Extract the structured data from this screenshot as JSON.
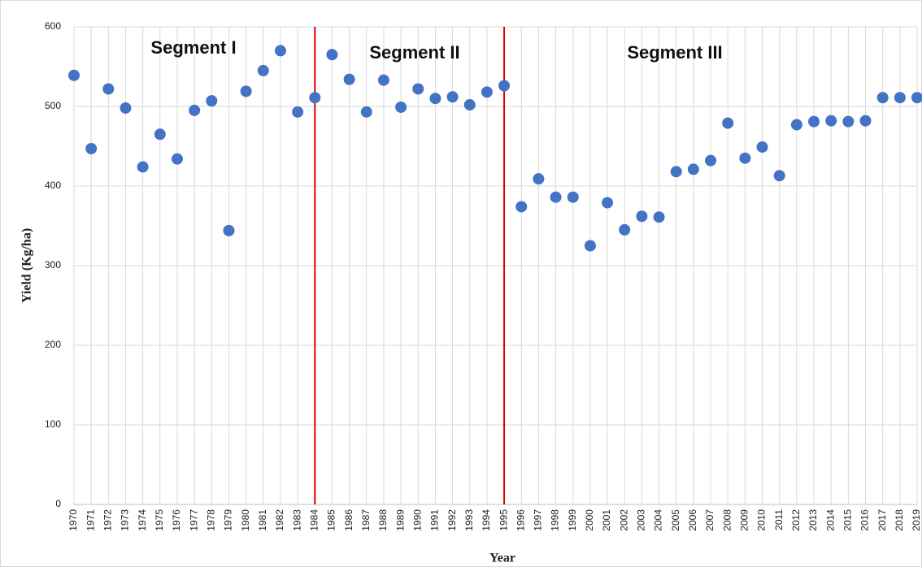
{
  "chart_data": {
    "type": "scatter",
    "x_label": "Year",
    "y_label": "Yield (Kg/ha)",
    "annotations": [
      "Segment I",
      "Segment II",
      "Segment III"
    ],
    "categories": [
      "1970",
      "1971",
      "1972",
      "1973",
      "1974",
      "1975",
      "1976",
      "1977",
      "1978",
      "1979",
      "1980",
      "1981",
      "1982",
      "1983",
      "1984",
      "1985",
      "1986",
      "1987",
      "1988",
      "1989",
      "1990",
      "1991",
      "1992",
      "1993",
      "1994",
      "1995",
      "1996",
      "1997",
      "1998",
      "1999",
      "2000",
      "2001",
      "2002",
      "2003",
      "2004",
      "2005",
      "2006",
      "2007",
      "2008",
      "2009",
      "2010",
      "2011",
      "2012",
      "2013",
      "2014",
      "2015",
      "2016",
      "2017",
      "2018",
      "2019"
    ],
    "values": [
      539,
      447,
      522,
      498,
      424,
      465,
      434,
      495,
      507,
      344,
      519,
      545,
      570,
      493,
      511,
      565,
      534,
      493,
      533,
      499,
      522,
      510,
      512,
      502,
      518,
      526,
      374,
      409,
      386,
      386,
      325,
      379,
      345,
      362,
      361,
      418,
      421,
      432,
      479,
      435,
      449,
      413,
      477,
      481,
      482,
      481,
      482,
      511,
      511,
      511
    ],
    "color": "#4472c4",
    "vlines": [
      "1984",
      "1995"
    ],
    "vline_color": "#e00000",
    "ylim": [
      0,
      600
    ],
    "yticks": [
      0,
      100,
      200,
      300,
      400,
      500,
      600
    ],
    "grid": true
  }
}
